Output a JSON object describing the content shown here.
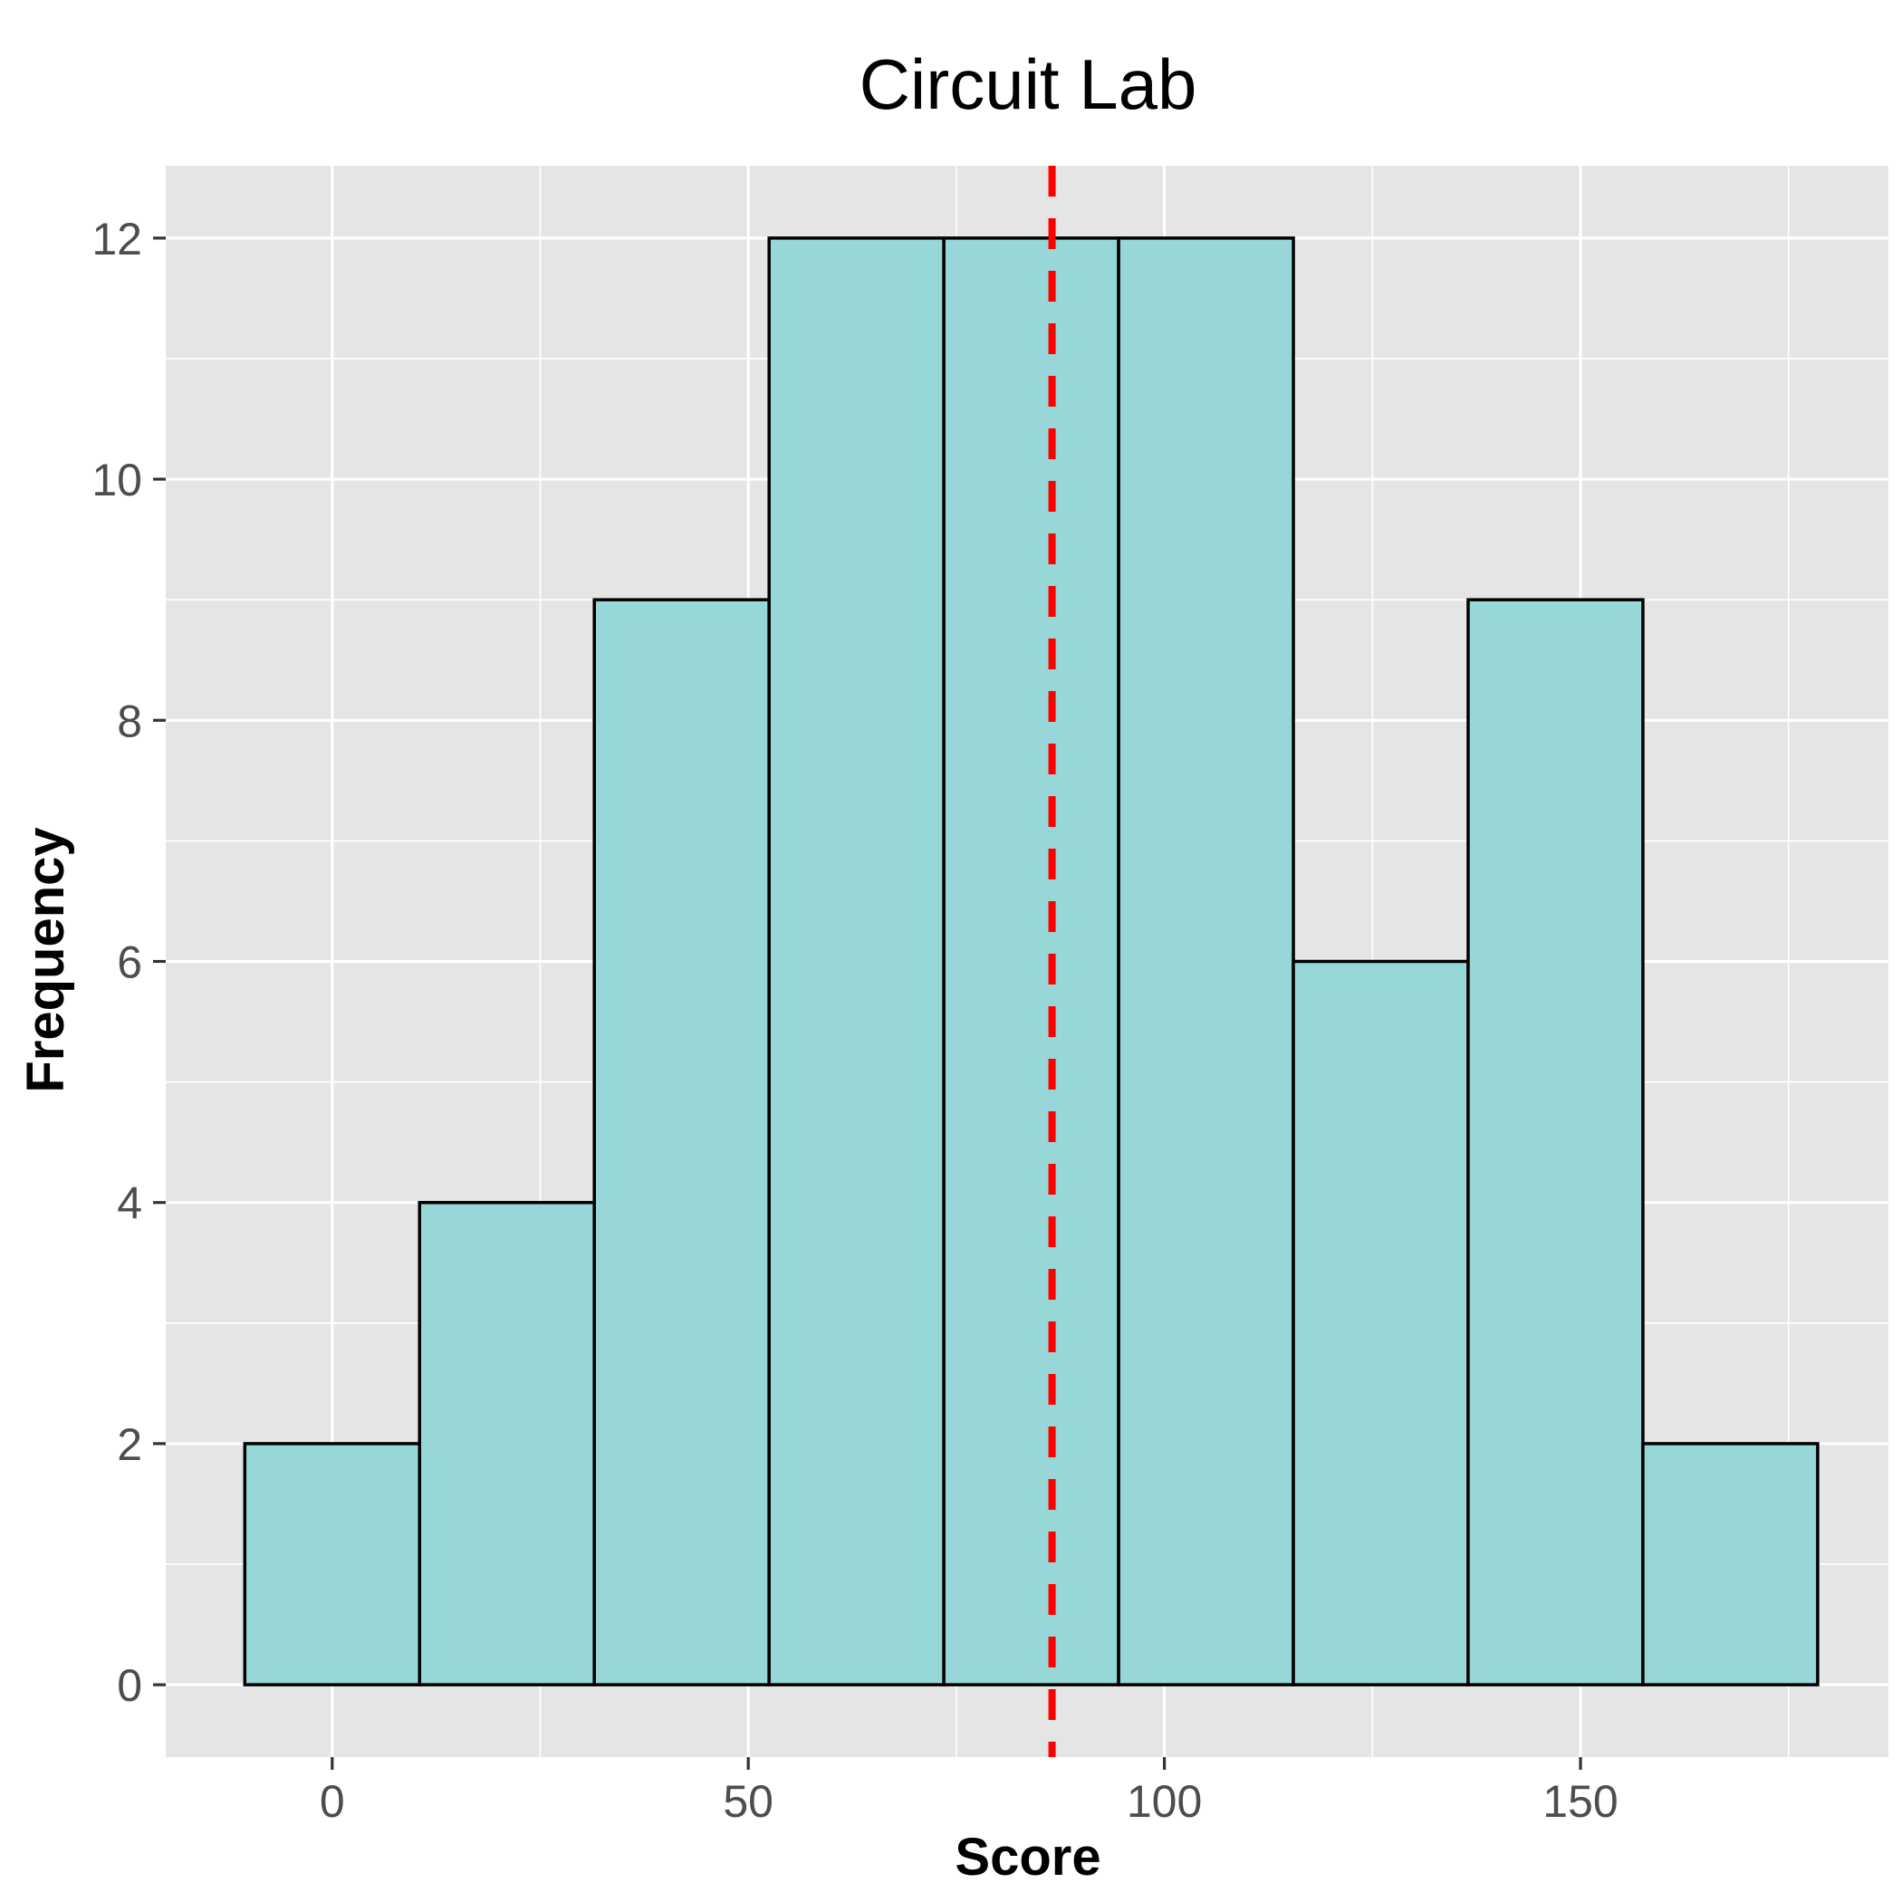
{
  "chart_data": {
    "type": "bar",
    "title": "Circuit Lab",
    "xlabel": "Score",
    "ylabel": "Frequency",
    "bins": [
      {
        "start": -10.5,
        "end": 10.5,
        "count": 2
      },
      {
        "start": 10.5,
        "end": 31.5,
        "count": 4
      },
      {
        "start": 31.5,
        "end": 52.5,
        "count": 9
      },
      {
        "start": 52.5,
        "end": 73.5,
        "count": 12
      },
      {
        "start": 73.5,
        "end": 94.5,
        "count": 12
      },
      {
        "start": 94.5,
        "end": 115.5,
        "count": 12
      },
      {
        "start": 115.5,
        "end": 136.5,
        "count": 6
      },
      {
        "start": 136.5,
        "end": 157.5,
        "count": 9
      },
      {
        "start": 157.5,
        "end": 178.5,
        "count": 2
      }
    ],
    "reference_line": {
      "x": 86.5,
      "style": "dashed",
      "color": "#ff0000"
    },
    "xlim": [
      -20,
      187
    ],
    "ylim": [
      -0.6,
      12.6
    ],
    "x_ticks": [
      0,
      50,
      100,
      150
    ],
    "y_ticks": [
      0,
      2,
      4,
      6,
      8,
      10,
      12
    ],
    "grid": true,
    "colors": {
      "bar_fill": "#97d7d7",
      "bar_stroke": "#000000",
      "panel": "#e5e5e5",
      "grid": "#ffffff"
    }
  }
}
